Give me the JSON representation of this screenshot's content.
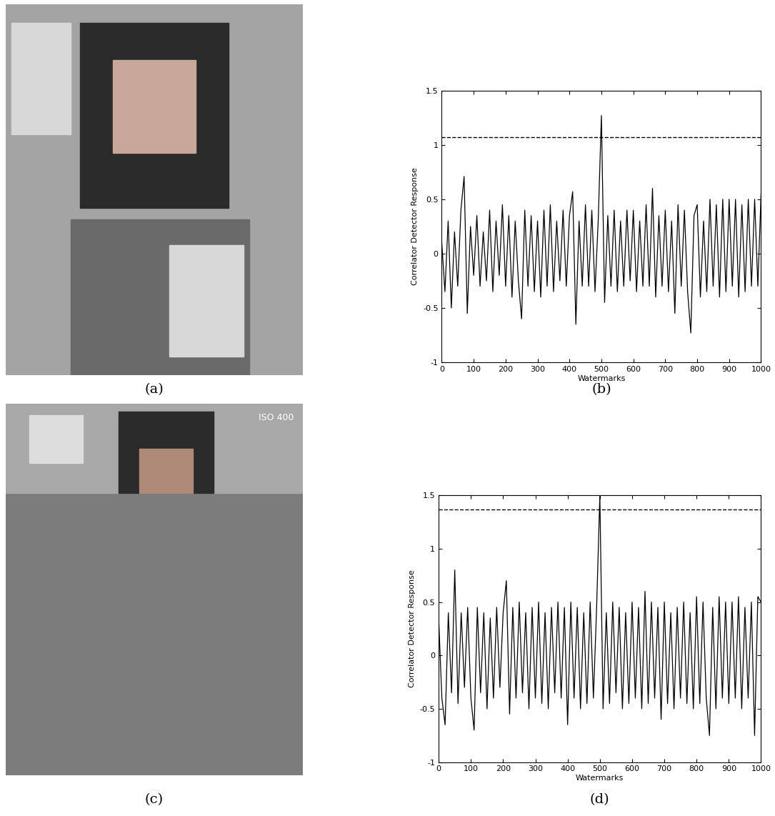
{
  "images": [
    {
      "caption": "(a)"
    },
    {
      "caption": "(c)",
      "text": "ISO 400"
    }
  ],
  "chart_data": [
    {
      "type": "line",
      "caption": "(b)",
      "x_label": "Watermarks",
      "y_label": "Correlator Detector Response",
      "xlim": [
        0,
        1000
      ],
      "xticks": [
        0,
        100,
        200,
        300,
        400,
        500,
        600,
        700,
        800,
        900,
        1000
      ],
      "ylim": [
        -1,
        1.5
      ],
      "yticks": [
        -1,
        -0.5,
        0,
        0.5,
        1,
        1.5
      ],
      "threshold": {
        "value": 1.07,
        "line_style": "dashed",
        "color": "#000000"
      },
      "x": [
        0,
        10,
        20,
        30,
        40,
        50,
        60,
        70,
        80,
        90,
        100,
        110,
        120,
        130,
        140,
        150,
        160,
        170,
        180,
        190,
        200,
        210,
        220,
        230,
        240,
        250,
        260,
        270,
        280,
        290,
        300,
        310,
        320,
        330,
        340,
        350,
        360,
        370,
        380,
        390,
        400,
        410,
        420,
        430,
        440,
        450,
        460,
        470,
        480,
        490,
        500,
        510,
        520,
        530,
        540,
        550,
        560,
        570,
        580,
        590,
        600,
        610,
        620,
        630,
        640,
        650,
        660,
        670,
        680,
        690,
        700,
        710,
        720,
        730,
        740,
        750,
        760,
        770,
        780,
        790,
        800,
        810,
        820,
        830,
        840,
        850,
        860,
        870,
        880,
        890,
        900,
        910,
        920,
        930,
        940,
        950,
        960,
        970,
        980,
        990,
        1000
      ],
      "series": [
        {
          "color": "#000000",
          "line_style": "solid",
          "values": [
            0.1,
            -0.35,
            0.3,
            -0.5,
            0.2,
            -0.3,
            0.4,
            0.71,
            -0.55,
            0.25,
            -0.2,
            0.35,
            -0.3,
            0.2,
            -0.25,
            0.4,
            -0.35,
            0.3,
            -0.2,
            0.45,
            -0.3,
            0.35,
            -0.4,
            0.3,
            -0.25,
            -0.6,
            0.4,
            -0.3,
            0.35,
            -0.35,
            0.3,
            -0.4,
            0.4,
            -0.3,
            0.45,
            -0.35,
            0.3,
            -0.25,
            0.4,
            -0.3,
            0.35,
            0.57,
            -0.65,
            0.3,
            -0.3,
            0.45,
            -0.3,
            0.4,
            -0.35,
            0.3,
            1.27,
            -0.45,
            0.35,
            -0.3,
            0.4,
            -0.35,
            0.3,
            -0.3,
            0.4,
            -0.25,
            0.4,
            -0.35,
            0.3,
            -0.3,
            0.45,
            -0.3,
            0.6,
            -0.4,
            0.35,
            -0.3,
            0.4,
            -0.35,
            0.3,
            -0.55,
            0.45,
            -0.3,
            0.4,
            -0.35,
            -0.73,
            0.35,
            0.45,
            -0.4,
            0.3,
            -0.35,
            0.5,
            -0.3,
            0.45,
            -0.4,
            0.5,
            -0.35,
            0.5,
            -0.3,
            0.5,
            -0.4,
            0.45,
            -0.35,
            0.5,
            -0.3,
            0.5,
            -0.3,
            0.55
          ]
        }
      ]
    },
    {
      "type": "line",
      "caption": "(d)",
      "x_label": "Watermarks",
      "y_label": "Correlator Detector Response",
      "xlim": [
        0,
        1000
      ],
      "xticks": [
        0,
        100,
        200,
        300,
        400,
        500,
        600,
        700,
        800,
        900,
        1000
      ],
      "ylim": [
        -1,
        1.5
      ],
      "yticks": [
        -1,
        -0.5,
        0,
        0.5,
        1,
        1.5
      ],
      "threshold": {
        "value": 1.37,
        "line_style": "dashed",
        "color": "#000000"
      },
      "x": [
        0,
        10,
        20,
        30,
        40,
        50,
        60,
        70,
        80,
        90,
        100,
        110,
        120,
        130,
        140,
        150,
        160,
        170,
        180,
        190,
        200,
        210,
        220,
        230,
        240,
        250,
        260,
        270,
        280,
        290,
        300,
        310,
        320,
        330,
        340,
        350,
        360,
        370,
        380,
        390,
        400,
        410,
        420,
        430,
        440,
        450,
        460,
        470,
        480,
        490,
        500,
        510,
        520,
        530,
        540,
        550,
        560,
        570,
        580,
        590,
        600,
        610,
        620,
        630,
        640,
        650,
        660,
        670,
        680,
        690,
        700,
        710,
        720,
        730,
        740,
        750,
        760,
        770,
        780,
        790,
        800,
        810,
        820,
        830,
        840,
        850,
        860,
        870,
        880,
        890,
        900,
        910,
        920,
        930,
        940,
        950,
        960,
        970,
        980,
        990,
        1000
      ],
      "series": [
        {
          "color": "#000000",
          "line_style": "solid",
          "values": [
            0.35,
            -0.4,
            -0.65,
            0.4,
            -0.35,
            0.8,
            -0.45,
            0.4,
            -0.3,
            0.45,
            -0.4,
            -0.7,
            0.45,
            -0.35,
            0.4,
            -0.5,
            0.35,
            -0.4,
            0.45,
            -0.3,
            0.4,
            0.7,
            -0.55,
            0.45,
            -0.4,
            0.5,
            -0.35,
            0.4,
            -0.5,
            0.45,
            -0.4,
            0.5,
            -0.45,
            0.4,
            -0.5,
            0.45,
            -0.35,
            0.5,
            -0.4,
            0.45,
            -0.65,
            0.5,
            -0.4,
            0.45,
            -0.5,
            0.4,
            -0.45,
            0.5,
            -0.4,
            0.45,
            1.5,
            -0.5,
            0.4,
            -0.45,
            0.5,
            -0.35,
            0.45,
            -0.5,
            0.4,
            -0.45,
            0.5,
            -0.4,
            0.45,
            -0.5,
            0.6,
            -0.45,
            0.5,
            -0.4,
            0.45,
            -0.6,
            0.5,
            -0.45,
            0.4,
            -0.5,
            0.45,
            -0.4,
            0.5,
            -0.45,
            0.4,
            -0.5,
            0.55,
            -0.45,
            0.5,
            -0.4,
            -0.75,
            0.45,
            -0.5,
            0.55,
            -0.4,
            0.5,
            -0.45,
            0.5,
            -0.4,
            0.55,
            -0.5,
            0.45,
            -0.4,
            0.5,
            -0.75,
            0.55,
            0.5
          ]
        }
      ]
    }
  ]
}
